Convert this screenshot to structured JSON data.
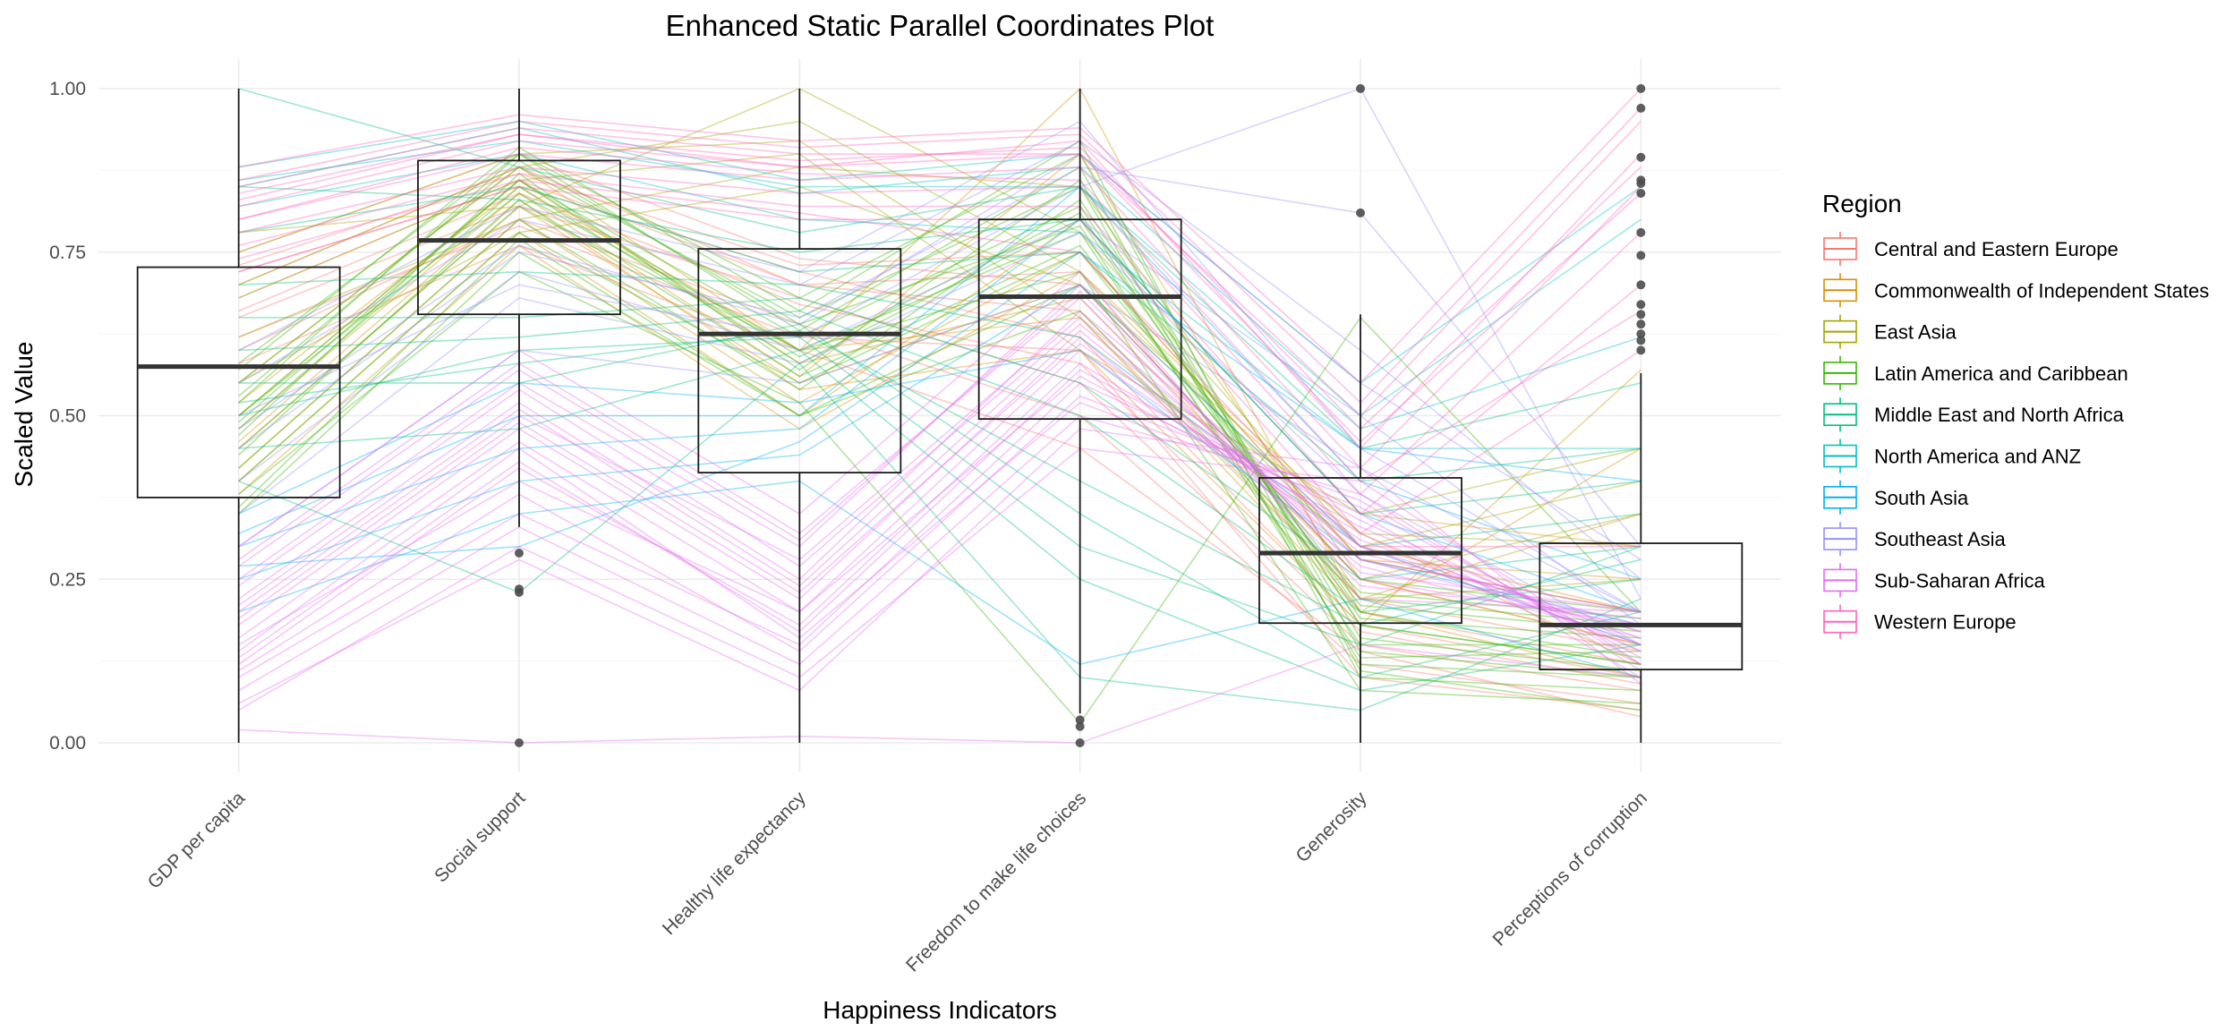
{
  "chart_data": {
    "type": "parallel-coordinates",
    "title": "Enhanced Static Parallel Coordinates Plot",
    "xlabel": "Happiness Indicators",
    "ylabel": "Scaled Value",
    "ylim": [
      0,
      1
    ],
    "y_ticks": [
      "0.00",
      "0.25",
      "0.50",
      "0.75",
      "1.00"
    ],
    "y_tick_values": [
      0,
      0.25,
      0.5,
      0.75,
      1.0
    ],
    "grid": true,
    "legend_position": "right",
    "legend_title": "Region",
    "categories": [
      "GDP per capita",
      "Social support",
      "Healthy life expectancy",
      "Freedom to make life choices",
      "Generosity",
      "Perceptions of corruption"
    ],
    "boxplots": [
      {
        "category": "GDP per capita",
        "min": 0.0,
        "q1": 0.375,
        "median": 0.575,
        "q3": 0.727,
        "max": 1.0,
        "outliers": []
      },
      {
        "category": "Social support",
        "min": 0.33,
        "q1": 0.655,
        "median": 0.768,
        "q3": 0.89,
        "max": 1.0,
        "outliers": [
          0.0,
          0.23,
          0.235,
          0.29
        ]
      },
      {
        "category": "Healthy life expectancy",
        "min": 0.0,
        "q1": 0.413,
        "median": 0.625,
        "q3": 0.755,
        "max": 1.0,
        "outliers": []
      },
      {
        "category": "Freedom to make life choices",
        "min": 0.045,
        "q1": 0.495,
        "median": 0.682,
        "q3": 0.8,
        "max": 1.0,
        "outliers": [
          0.0,
          0.025,
          0.035
        ]
      },
      {
        "category": "Generosity",
        "min": 0.0,
        "q1": 0.183,
        "median": 0.29,
        "q3": 0.405,
        "max": 0.655,
        "outliers": [
          0.81,
          1.0
        ]
      },
      {
        "category": "Perceptions of corruption",
        "min": 0.0,
        "q1": 0.112,
        "median": 0.18,
        "q3": 0.305,
        "max": 0.565,
        "outliers": [
          0.6,
          0.615,
          0.625,
          0.64,
          0.655,
          0.67,
          0.7,
          0.745,
          0.78,
          0.84,
          0.855,
          0.86,
          0.895,
          0.97,
          1.0
        ]
      }
    ],
    "series": [
      {
        "name": "Central and Eastern Europe",
        "color": "#F8766D",
        "lines": [
          [
            0.72,
            0.85,
            0.72,
            0.62,
            0.18,
            0.1
          ],
          [
            0.65,
            0.82,
            0.68,
            0.55,
            0.15,
            0.08
          ],
          [
            0.7,
            0.88,
            0.7,
            0.72,
            0.2,
            0.12
          ],
          [
            0.6,
            0.8,
            0.64,
            0.5,
            0.12,
            0.06
          ],
          [
            0.68,
            0.86,
            0.7,
            0.66,
            0.22,
            0.14
          ],
          [
            0.62,
            0.79,
            0.62,
            0.6,
            0.1,
            0.05
          ],
          [
            0.75,
            0.9,
            0.74,
            0.7,
            0.25,
            0.15
          ],
          [
            0.58,
            0.76,
            0.6,
            0.45,
            0.14,
            0.04
          ],
          [
            0.66,
            0.84,
            0.67,
            0.58,
            0.17,
            0.09
          ],
          [
            0.73,
            0.87,
            0.73,
            0.75,
            0.28,
            0.2
          ]
        ]
      },
      {
        "name": "Commonwealth of Independent States",
        "color": "#D89000",
        "lines": [
          [
            0.45,
            0.82,
            0.55,
            0.7,
            0.3,
            0.2
          ],
          [
            0.5,
            0.86,
            0.58,
            0.68,
            0.25,
            0.15
          ],
          [
            0.4,
            0.78,
            0.5,
            0.8,
            0.35,
            0.3
          ],
          [
            0.55,
            0.88,
            0.6,
            0.65,
            0.2,
            0.1
          ],
          [
            0.42,
            0.8,
            0.52,
            0.75,
            0.28,
            0.25
          ],
          [
            0.48,
            0.84,
            0.56,
            0.9,
            0.22,
            0.35
          ],
          [
            0.52,
            0.85,
            0.6,
            1.0,
            0.2,
            0.45
          ],
          [
            0.38,
            0.76,
            0.48,
            0.72,
            0.32,
            0.12
          ],
          [
            0.46,
            0.83,
            0.54,
            0.6,
            0.18,
            0.57
          ]
        ]
      },
      {
        "name": "East Asia",
        "color": "#A3A500",
        "lines": [
          [
            0.78,
            0.82,
            1.0,
            0.78,
            0.3,
            0.4
          ],
          [
            0.7,
            0.88,
            0.95,
            0.72,
            0.28,
            0.2
          ],
          [
            0.62,
            0.8,
            0.88,
            0.85,
            0.25,
            0.35
          ],
          [
            0.75,
            0.9,
            0.92,
            0.65,
            0.22,
            0.25
          ],
          [
            0.55,
            0.78,
            0.85,
            0.7,
            0.32,
            0.3
          ],
          [
            0.68,
            0.86,
            0.9,
            0.6,
            0.35,
            0.45
          ]
        ]
      },
      {
        "name": "Latin America and Caribbean",
        "color": "#39B600",
        "lines": [
          [
            0.5,
            0.86,
            0.62,
            0.82,
            0.18,
            0.12
          ],
          [
            0.55,
            0.88,
            0.65,
            0.85,
            0.12,
            0.1
          ],
          [
            0.45,
            0.82,
            0.6,
            0.78,
            0.15,
            0.15
          ],
          [
            0.52,
            0.9,
            0.63,
            0.88,
            0.1,
            0.08
          ],
          [
            0.48,
            0.85,
            0.58,
            0.8,
            0.2,
            0.13
          ],
          [
            0.4,
            0.78,
            0.55,
            0.75,
            0.22,
            0.18
          ],
          [
            0.58,
            0.9,
            0.68,
            0.9,
            0.14,
            0.1
          ],
          [
            0.35,
            0.75,
            0.5,
            0.7,
            0.25,
            0.2
          ],
          [
            0.5,
            0.84,
            0.6,
            0.72,
            0.08,
            0.06
          ],
          [
            0.47,
            0.87,
            0.57,
            0.86,
            0.16,
            0.11
          ],
          [
            0.53,
            0.89,
            0.64,
            0.79,
            0.13,
            0.14
          ],
          [
            0.42,
            0.8,
            0.54,
            0.83,
            0.19,
            0.16
          ],
          [
            0.57,
            0.91,
            0.66,
            0.92,
            0.11,
            0.05
          ],
          [
            0.44,
            0.83,
            0.56,
            0.76,
            0.21,
            0.17
          ],
          [
            0.49,
            0.86,
            0.59,
            0.81,
            0.18,
            0.12
          ],
          [
            0.38,
            0.72,
            0.52,
            0.03,
            0.65,
            0.2
          ],
          [
            0.36,
            0.77,
            0.5,
            0.66,
            0.23,
            0.19
          ]
        ]
      },
      {
        "name": "Middle East and North Africa",
        "color": "#00BF7D",
        "lines": [
          [
            1.0,
            0.88,
            0.78,
            0.85,
            0.45,
            0.55
          ],
          [
            0.85,
            0.83,
            0.75,
            0.8,
            0.35,
            0.4
          ],
          [
            0.6,
            0.62,
            0.66,
            0.5,
            0.2,
            0.25
          ],
          [
            0.55,
            0.55,
            0.64,
            0.35,
            0.1,
            0.2
          ],
          [
            0.5,
            0.6,
            0.62,
            0.3,
            0.15,
            0.3
          ],
          [
            0.45,
            0.48,
            0.6,
            0.25,
            0.08,
            0.15
          ],
          [
            0.65,
            0.65,
            0.68,
            0.55,
            0.25,
            0.3
          ],
          [
            0.7,
            0.72,
            0.7,
            0.62,
            0.3,
            0.35
          ],
          [
            0.4,
            0.23,
            0.58,
            0.1,
            0.05,
            0.22
          ],
          [
            0.52,
            0.58,
            0.63,
            0.4,
            0.18,
            0.28
          ],
          [
            0.78,
            0.85,
            0.72,
            0.75,
            0.4,
            0.45
          ]
        ]
      },
      {
        "name": "North America and ANZ",
        "color": "#00BFC4",
        "lines": [
          [
            0.88,
            0.95,
            0.86,
            0.9,
            0.55,
            0.85
          ],
          [
            0.85,
            0.94,
            0.84,
            0.88,
            0.5,
            0.8
          ],
          [
            0.86,
            0.92,
            0.85,
            0.85,
            0.48,
            0.62
          ],
          [
            0.82,
            0.9,
            0.8,
            0.78,
            0.45,
            0.45
          ]
        ]
      },
      {
        "name": "South Asia",
        "color": "#00B0F6",
        "lines": [
          [
            0.3,
            0.45,
            0.48,
            0.8,
            0.35,
            0.2
          ],
          [
            0.25,
            0.4,
            0.44,
            0.7,
            0.3,
            0.15
          ],
          [
            0.32,
            0.5,
            0.5,
            0.85,
            0.4,
            0.25
          ],
          [
            0.2,
            0.35,
            0.4,
            0.12,
            0.22,
            0.1
          ],
          [
            0.27,
            0.3,
            0.46,
            0.75,
            0.45,
            0.4
          ],
          [
            0.35,
            0.55,
            0.52,
            0.6,
            0.28,
            0.18
          ]
        ]
      },
      {
        "name": "Southeast Asia",
        "color": "#9590FF",
        "lines": [
          [
            0.55,
            0.8,
            0.7,
            0.92,
            0.6,
            0.25
          ],
          [
            0.45,
            0.75,
            0.65,
            0.88,
            0.81,
            0.3
          ],
          [
            0.5,
            0.7,
            0.62,
            0.85,
            1.0,
            0.22
          ],
          [
            0.4,
            0.72,
            0.6,
            0.8,
            0.5,
            0.18
          ],
          [
            0.6,
            0.82,
            0.72,
            0.95,
            0.45,
            0.2
          ],
          [
            0.35,
            0.68,
            0.58,
            0.78,
            0.38,
            0.15
          ],
          [
            0.48,
            0.76,
            0.64,
            0.9,
            0.55,
            0.28
          ],
          [
            0.3,
            0.6,
            0.55,
            0.7,
            0.42,
            0.2
          ]
        ]
      },
      {
        "name": "Sub-Saharan Africa",
        "color": "#E76BF3",
        "lines": [
          [
            0.15,
            0.4,
            0.2,
            0.6,
            0.3,
            0.15
          ],
          [
            0.1,
            0.35,
            0.15,
            0.55,
            0.35,
            0.1
          ],
          [
            0.2,
            0.5,
            0.28,
            0.65,
            0.28,
            0.2
          ],
          [
            0.05,
            0.3,
            0.1,
            0.45,
            0.4,
            0.12
          ],
          [
            0.25,
            0.55,
            0.3,
            0.7,
            0.25,
            0.18
          ],
          [
            0.12,
            0.42,
            0.18,
            0.58,
            0.32,
            0.14
          ],
          [
            0.18,
            0.48,
            0.22,
            0.62,
            0.27,
            0.16
          ],
          [
            0.08,
            0.33,
            0.12,
            0.5,
            0.38,
            0.11
          ],
          [
            0.3,
            0.6,
            0.35,
            0.72,
            0.22,
            0.2
          ],
          [
            0.22,
            0.52,
            0.25,
            0.66,
            0.3,
            0.17
          ],
          [
            0.14,
            0.45,
            0.16,
            0.52,
            0.36,
            0.13
          ],
          [
            0.28,
            0.58,
            0.32,
            0.68,
            0.24,
            0.19
          ],
          [
            0.06,
            0.28,
            0.08,
            0.48,
            0.42,
            0.09
          ],
          [
            0.16,
            0.46,
            0.2,
            0.56,
            0.33,
            0.15
          ],
          [
            0.24,
            0.54,
            0.27,
            0.64,
            0.29,
            0.18
          ],
          [
            0.11,
            0.38,
            0.14,
            0.53,
            0.37,
            0.12
          ],
          [
            0.19,
            0.49,
            0.23,
            0.61,
            0.31,
            0.16
          ],
          [
            0.02,
            0.0,
            0.01,
            0.0,
            0.15,
            0.1
          ],
          [
            0.27,
            0.57,
            0.31,
            0.69,
            0.26,
            0.2
          ],
          [
            0.13,
            0.43,
            0.17,
            0.57,
            0.34,
            0.14
          ],
          [
            0.21,
            0.51,
            0.24,
            0.63,
            0.28,
            0.17
          ]
        ]
      },
      {
        "name": "Western Europe",
        "color": "#FF62BC",
        "lines": [
          [
            0.82,
            0.92,
            0.88,
            0.92,
            0.45,
            0.9
          ],
          [
            0.85,
            0.94,
            0.9,
            0.9,
            0.5,
            0.95
          ],
          [
            0.8,
            0.9,
            0.86,
            0.88,
            0.42,
            0.85
          ],
          [
            0.88,
            0.96,
            0.92,
            0.94,
            0.55,
            1.0
          ],
          [
            0.78,
            0.88,
            0.84,
            0.85,
            0.38,
            0.78
          ],
          [
            0.83,
            0.93,
            0.89,
            0.91,
            0.48,
            0.88
          ],
          [
            0.76,
            0.87,
            0.82,
            0.82,
            0.35,
            0.7
          ],
          [
            0.86,
            0.95,
            0.91,
            0.93,
            0.52,
            0.97
          ],
          [
            0.72,
            0.85,
            0.8,
            0.8,
            0.32,
            0.6
          ],
          [
            0.8,
            0.91,
            0.87,
            0.86,
            0.4,
            0.66
          ],
          [
            0.84,
            0.93,
            0.88,
            0.9,
            0.46,
            0.84
          ],
          [
            0.74,
            0.86,
            0.81,
            0.75,
            0.3,
            0.3
          ]
        ]
      }
    ]
  }
}
